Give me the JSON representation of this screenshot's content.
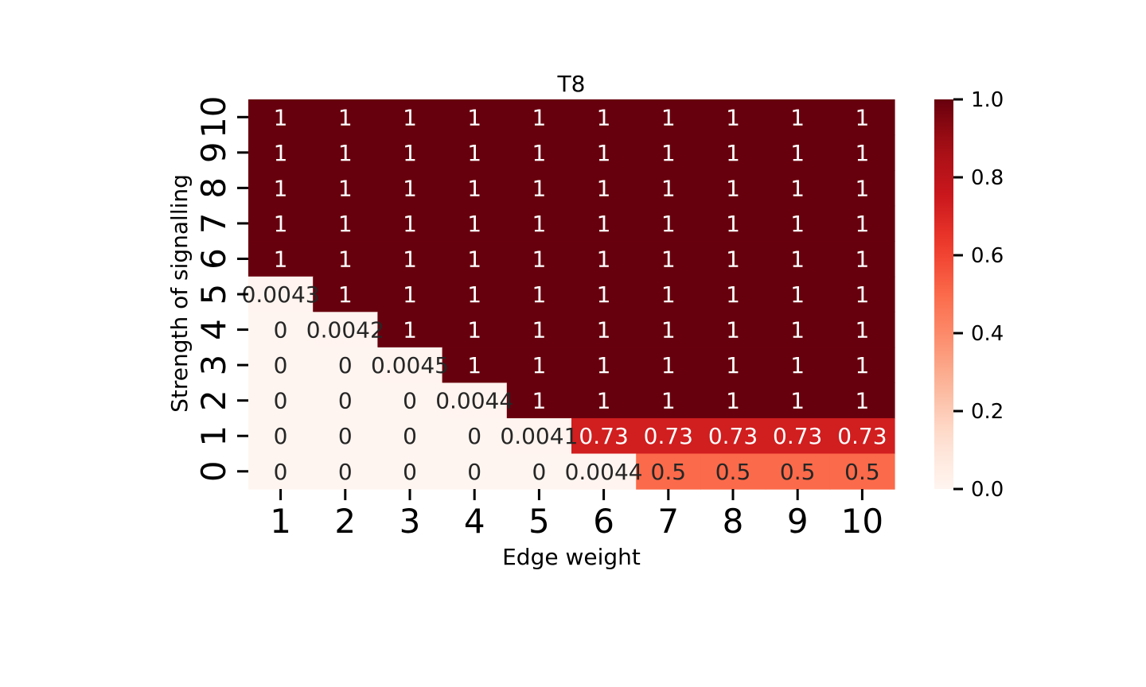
{
  "chart_data": {
    "type": "heatmap",
    "title": "T8",
    "xlabel": "Edge weight",
    "ylabel": "Strength of signalling",
    "x_categories": [
      "1",
      "2",
      "3",
      "4",
      "5",
      "6",
      "7",
      "8",
      "9",
      "10"
    ],
    "y_categories": [
      "10",
      "9",
      "8",
      "7",
      "6",
      "5",
      "4",
      "3",
      "2",
      "1",
      "0"
    ],
    "values": [
      [
        1,
        1,
        1,
        1,
        1,
        1,
        1,
        1,
        1,
        1
      ],
      [
        1,
        1,
        1,
        1,
        1,
        1,
        1,
        1,
        1,
        1
      ],
      [
        1,
        1,
        1,
        1,
        1,
        1,
        1,
        1,
        1,
        1
      ],
      [
        1,
        1,
        1,
        1,
        1,
        1,
        1,
        1,
        1,
        1
      ],
      [
        1,
        1,
        1,
        1,
        1,
        1,
        1,
        1,
        1,
        1
      ],
      [
        0.0043,
        1,
        1,
        1,
        1,
        1,
        1,
        1,
        1,
        1
      ],
      [
        0,
        0.0042,
        1,
        1,
        1,
        1,
        1,
        1,
        1,
        1
      ],
      [
        0,
        0,
        0.0045,
        1,
        1,
        1,
        1,
        1,
        1,
        1
      ],
      [
        0,
        0,
        0,
        0.0044,
        1,
        1,
        1,
        1,
        1,
        1
      ],
      [
        0,
        0,
        0,
        0,
        0.0041,
        0.73,
        0.73,
        0.73,
        0.73,
        0.73
      ],
      [
        0,
        0,
        0,
        0,
        0,
        0.0044,
        0.5,
        0.5,
        0.5,
        0.5
      ]
    ],
    "annotations": [
      [
        "1",
        "1",
        "1",
        "1",
        "1",
        "1",
        "1",
        "1",
        "1",
        "1"
      ],
      [
        "1",
        "1",
        "1",
        "1",
        "1",
        "1",
        "1",
        "1",
        "1",
        "1"
      ],
      [
        "1",
        "1",
        "1",
        "1",
        "1",
        "1",
        "1",
        "1",
        "1",
        "1"
      ],
      [
        "1",
        "1",
        "1",
        "1",
        "1",
        "1",
        "1",
        "1",
        "1",
        "1"
      ],
      [
        "1",
        "1",
        "1",
        "1",
        "1",
        "1",
        "1",
        "1",
        "1",
        "1"
      ],
      [
        "0.0043",
        "1",
        "1",
        "1",
        "1",
        "1",
        "1",
        "1",
        "1",
        "1"
      ],
      [
        "0",
        "0.0042",
        "1",
        "1",
        "1",
        "1",
        "1",
        "1",
        "1",
        "1"
      ],
      [
        "0",
        "0",
        "0.0045",
        "1",
        "1",
        "1",
        "1",
        "1",
        "1",
        "1"
      ],
      [
        "0",
        "0",
        "0",
        "0.0044",
        "1",
        "1",
        "1",
        "1",
        "1",
        "1"
      ],
      [
        "0",
        "0",
        "0",
        "0",
        "0.0041",
        "0.73",
        "0.73",
        "0.73",
        "0.73",
        "0.73"
      ],
      [
        "0",
        "0",
        "0",
        "0",
        "0",
        "0.0044",
        "0.5",
        "0.5",
        "0.5",
        "0.5"
      ]
    ],
    "colormap": "Reds",
    "vmin": 0,
    "vmax": 1,
    "colorbar_ticks": [
      "0.0",
      "0.2",
      "0.4",
      "0.6",
      "0.8",
      "1.0"
    ]
  }
}
